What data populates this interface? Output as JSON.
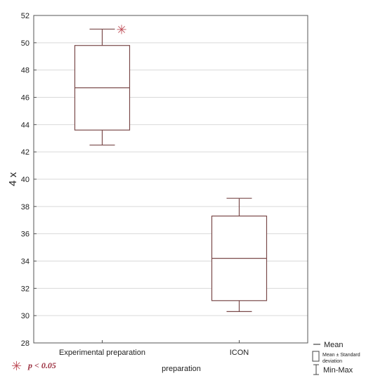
{
  "chart_data": {
    "type": "box",
    "ylabel": "4 x",
    "xlabel": "preparation",
    "ylim": [
      28,
      52
    ],
    "yticks": [
      "28",
      "30",
      "32",
      "34",
      "36",
      "38",
      "40",
      "42",
      "44",
      "46",
      "48",
      "50",
      "52"
    ],
    "grid": true,
    "categories": [
      "Experimental preparation",
      "ICON"
    ],
    "boxes": [
      {
        "category": "Experimental preparation",
        "mean": 46.7,
        "sd_low": 43.6,
        "sd_high": 49.8,
        "min": 42.5,
        "max": 51.0,
        "significant": true
      },
      {
        "category": "ICON",
        "mean": 34.2,
        "sd_low": 31.1,
        "sd_high": 37.3,
        "min": 30.3,
        "max": 38.6,
        "significant": false
      }
    ],
    "legend": {
      "mean": "Mean",
      "sd_line1": "Mean ± Standard",
      "sd_line2": "deviation",
      "minmax": "Min-Max"
    },
    "significance_marker": {
      "symbol": "✳",
      "text": "p < 0.05"
    },
    "colors": {
      "box": "#7a4a4a",
      "marker": "#c0505a",
      "grid": "#d9d9d9",
      "axis": "#555555"
    }
  }
}
